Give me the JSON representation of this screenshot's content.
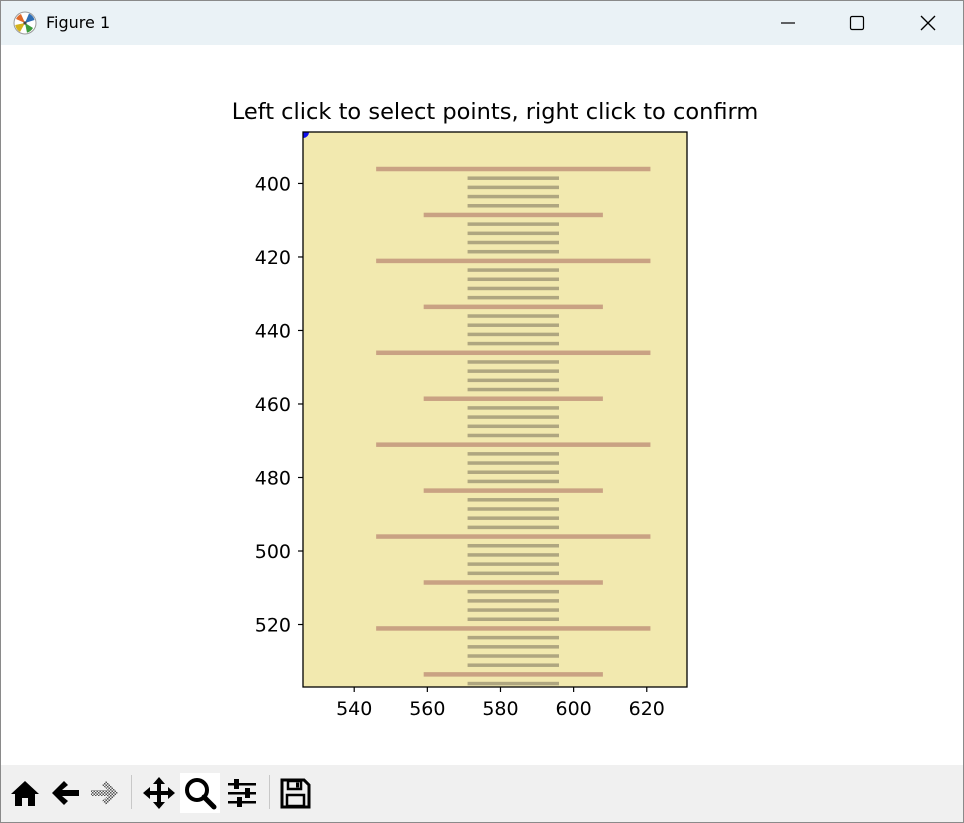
{
  "window": {
    "title": "Figure 1",
    "buttons": [
      "minimize",
      "maximize",
      "close"
    ]
  },
  "toolbar": {
    "icons": [
      "home-icon",
      "back-arrow-icon",
      "forward-arrow-icon",
      "pan-icon",
      "zoom-icon",
      "configure-subplots-icon",
      "save-icon"
    ],
    "active": "zoom-icon"
  },
  "plot": {
    "title": "Left click to select points, right click to confirm",
    "image_bg": "#f2e9af",
    "line_color": "#c9a283",
    "tick_color": "#a39a78",
    "marker_color": "#1010ee"
  },
  "chart_data": {
    "type": "image",
    "title": "Left click to select points, right click to confirm",
    "xlabel": "",
    "ylabel": "",
    "xlim": [
      526,
      631
    ],
    "ylim": [
      537,
      386
    ],
    "x_ticks": [
      540,
      560,
      580,
      600,
      620
    ],
    "y_ticks": [
      400,
      420,
      440,
      460,
      480,
      500,
      520
    ],
    "long_lines": [
      {
        "y": 396,
        "x1": 546,
        "x2": 621
      },
      {
        "y": 408.5,
        "x1": 559,
        "x2": 608
      },
      {
        "y": 421,
        "x1": 546,
        "x2": 621
      },
      {
        "y": 433.5,
        "x1": 559,
        "x2": 608
      },
      {
        "y": 446,
        "x1": 546,
        "x2": 621
      },
      {
        "y": 458.5,
        "x1": 559,
        "x2": 608
      },
      {
        "y": 471,
        "x1": 546,
        "x2": 621
      },
      {
        "y": 483.5,
        "x1": 559,
        "x2": 608
      },
      {
        "y": 496,
        "x1": 546,
        "x2": 621
      },
      {
        "y": 508.5,
        "x1": 559,
        "x2": 608
      },
      {
        "y": 521,
        "x1": 546,
        "x2": 621
      },
      {
        "y": 533.5,
        "x1": 559,
        "x2": 608
      }
    ],
    "short_ticks": {
      "x1": 571,
      "x2": 596,
      "y_start": 398.5,
      "y_end": 536,
      "step": 2.5
    },
    "marker": {
      "x": 526,
      "y": 386
    }
  }
}
